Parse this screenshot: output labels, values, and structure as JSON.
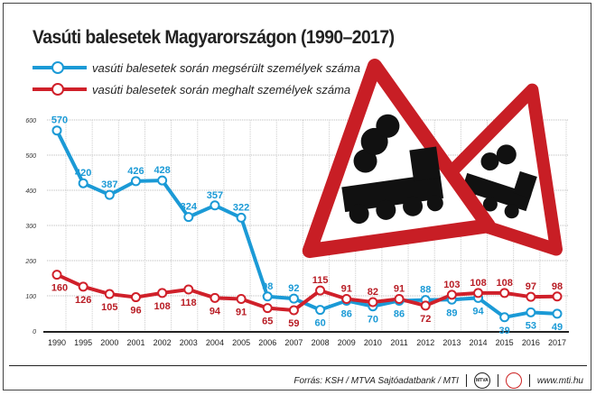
{
  "chart_data": {
    "type": "line",
    "title": "Vasúti balesetek Magyarországon (1990–2017)",
    "categories": [
      "1990",
      "1995",
      "2000",
      "2001",
      "2002",
      "2003",
      "2004",
      "2005",
      "2006",
      "2007",
      "2008",
      "2009",
      "2010",
      "2011",
      "2012",
      "2013",
      "2014",
      "2015",
      "2016",
      "2017"
    ],
    "series": [
      {
        "name": "vasúti balesetek során megsérült személyek száma",
        "color": "#1b9ad6",
        "values": [
          570,
          420,
          387,
          426,
          428,
          324,
          357,
          322,
          98,
          92,
          60,
          86,
          70,
          86,
          88,
          89,
          94,
          39,
          53,
          49
        ]
      },
      {
        "name": "vasúti balesetek során meghalt személyek száma",
        "color": "#d0202a",
        "values": [
          160,
          126,
          105,
          96,
          108,
          118,
          94,
          91,
          65,
          59,
          115,
          91,
          82,
          91,
          72,
          103,
          108,
          108,
          97,
          98
        ]
      }
    ],
    "yticks": [
      "0",
      "100",
      "200",
      "300",
      "400",
      "500",
      "600"
    ],
    "ylim": [
      0,
      600
    ],
    "grid": true,
    "legend": "top-left"
  },
  "footer": {
    "source": "Forrás: KSH / MTVA Sajtóadatbank / MTI",
    "logo1": "MTVA",
    "website": "www.mti.hu"
  }
}
